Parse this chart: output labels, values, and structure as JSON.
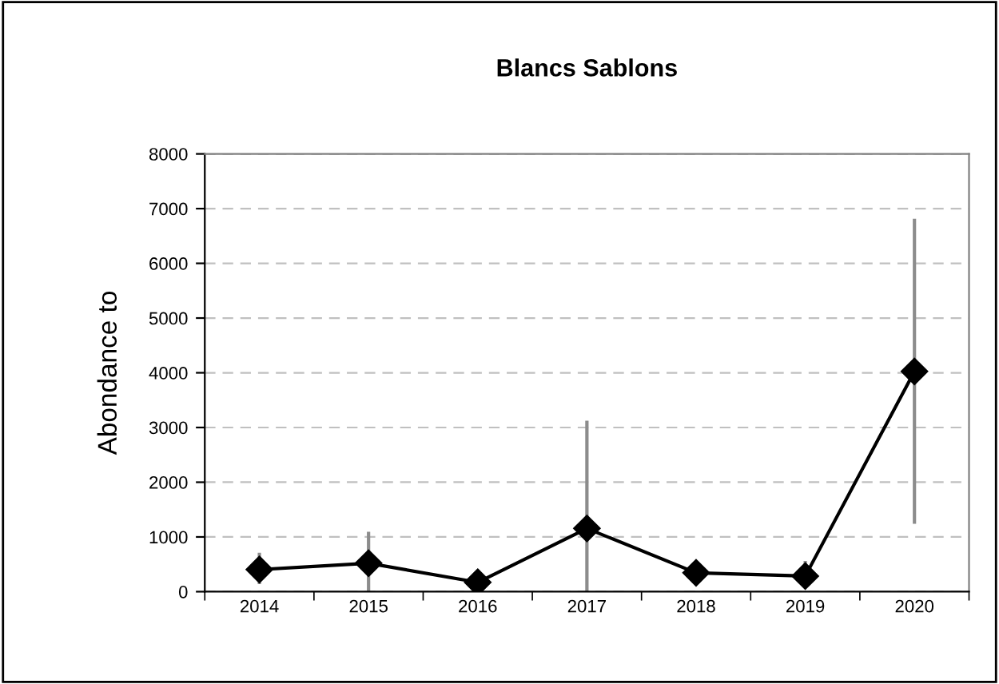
{
  "chart_data": {
    "type": "line",
    "title": "Blancs Sablons",
    "ylabel": "Abondance to",
    "categories": [
      "2014",
      "2015",
      "2016",
      "2017",
      "2018",
      "2019",
      "2020"
    ],
    "series": [
      {
        "color": "#000000",
        "values": [
          405,
          520,
          170,
          1155,
          345,
          285,
          4025
        ],
        "errors": [
          [
            170,
            680
          ],
          [
            0,
            1065
          ],
          null,
          [
            0,
            3095
          ],
          null,
          [
            170,
            530
          ],
          [
            1270,
            6785
          ]
        ]
      }
    ],
    "ylim": [
      0,
      8000
    ],
    "yticks": [
      0,
      1000,
      2000,
      3000,
      4000,
      5000,
      6000,
      7000,
      8000
    ],
    "grid": "y",
    "marker": "diamond",
    "line_style": "solid",
    "legend": false
  }
}
